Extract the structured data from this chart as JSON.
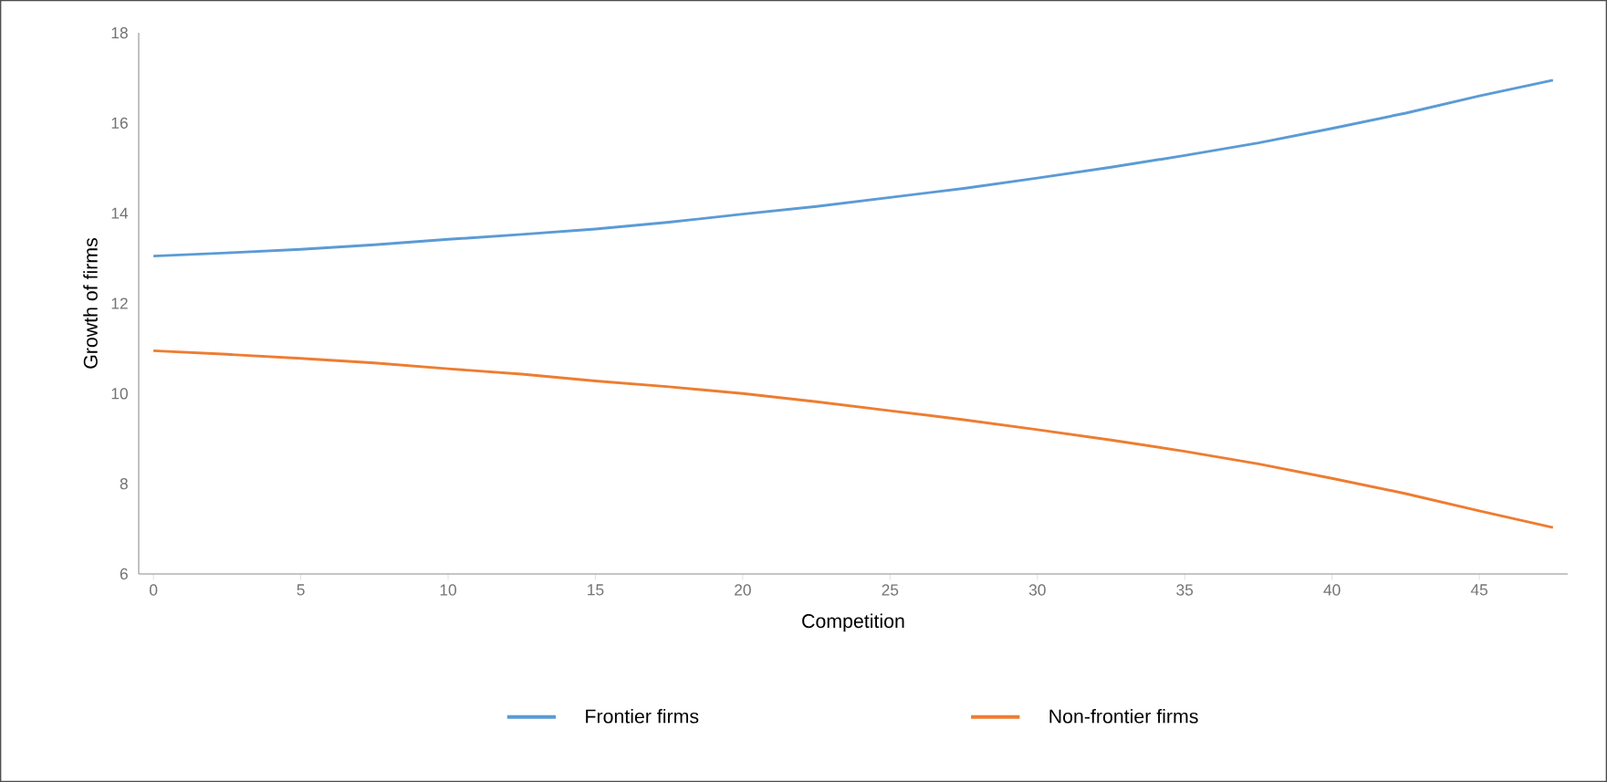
{
  "chart_data": {
    "type": "line",
    "xlabel": "Competition",
    "ylabel": "Growth of firms",
    "x": [
      0,
      2.5,
      5,
      7.5,
      10,
      12.5,
      15,
      17.5,
      20,
      22.5,
      25,
      27.5,
      30,
      32.5,
      35,
      37.5,
      40,
      42.5,
      45,
      47.5
    ],
    "series": [
      {
        "name": "Frontier firms",
        "color": "#5b9bd5",
        "values": [
          13.05,
          13.12,
          13.2,
          13.3,
          13.42,
          13.53,
          13.65,
          13.8,
          13.98,
          14.15,
          14.35,
          14.55,
          14.78,
          15.02,
          15.28,
          15.56,
          15.88,
          16.22,
          16.6,
          16.95
        ]
      },
      {
        "name": "Non-frontier firms",
        "color": "#ed7d31",
        "values": [
          10.95,
          10.87,
          10.78,
          10.68,
          10.55,
          10.43,
          10.28,
          10.15,
          10.0,
          9.82,
          9.62,
          9.42,
          9.2,
          8.97,
          8.72,
          8.44,
          8.12,
          7.78,
          7.4,
          7.03
        ]
      }
    ],
    "xlim": [
      -0.5,
      48
    ],
    "ylim": [
      6,
      18
    ],
    "xticks": [
      0,
      5,
      10,
      15,
      20,
      25,
      30,
      35,
      40,
      45
    ],
    "yticks": [
      6,
      8,
      10,
      12,
      14,
      16,
      18
    ],
    "grid": false,
    "legend": "bottom",
    "marker": "none",
    "line_style": "solid"
  }
}
